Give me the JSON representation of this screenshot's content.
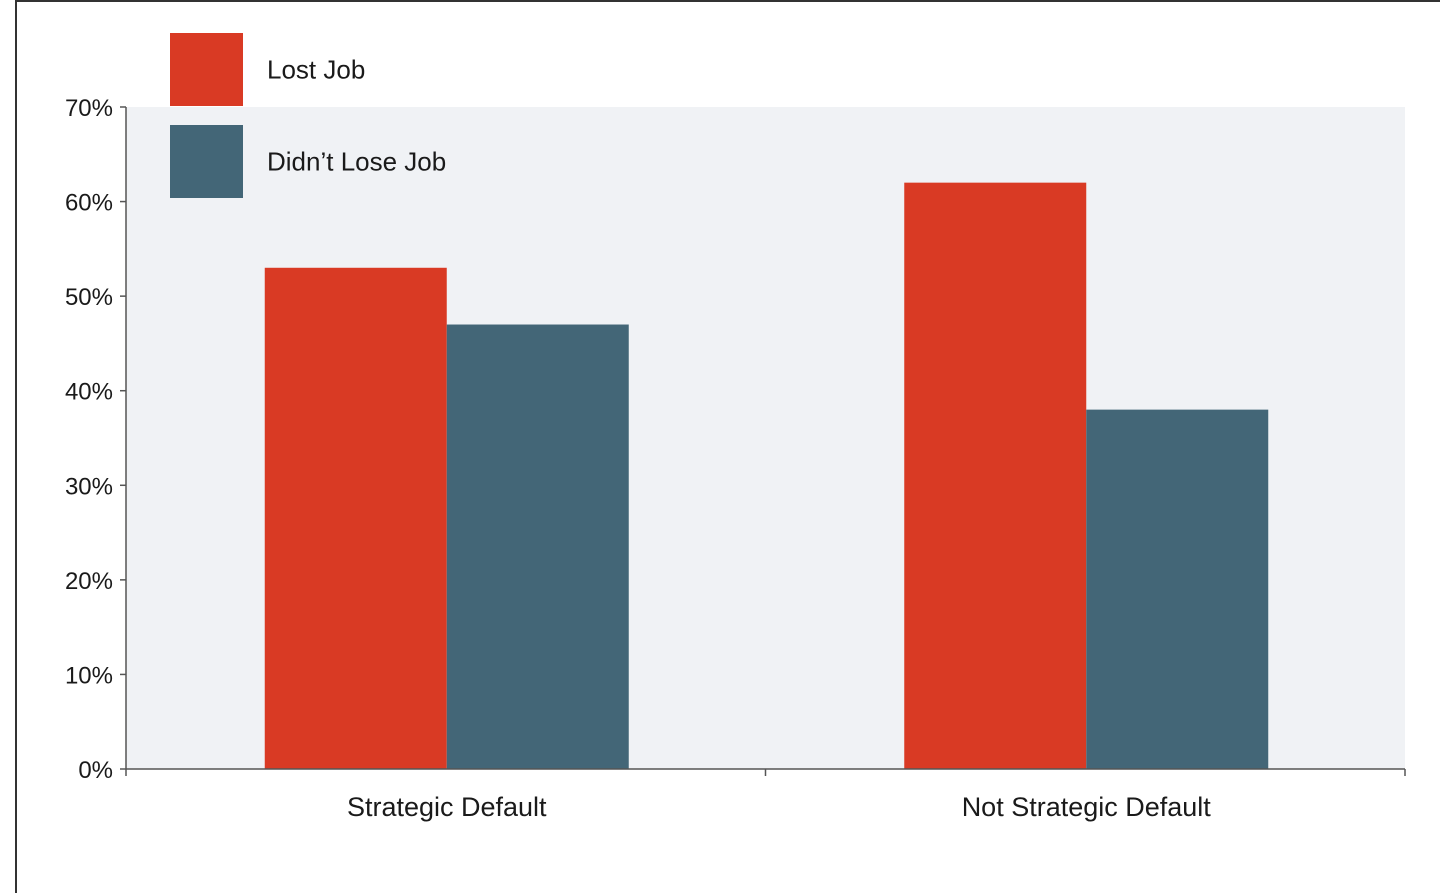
{
  "chart_data": {
    "type": "bar",
    "title": "",
    "xlabel": "",
    "ylabel": "",
    "categories": [
      "Strategic Default",
      "Not Strategic Default"
    ],
    "series": [
      {
        "name": "Lost Job",
        "values": [
          53,
          62
        ],
        "color": "#d93a24"
      },
      {
        "name": "Didn’t Lose Job",
        "values": [
          47,
          38
        ],
        "color": "#436677"
      }
    ],
    "ylim": [
      0,
      70
    ],
    "yticks": [
      0,
      10,
      20,
      30,
      40,
      50,
      60,
      70
    ],
    "ytick_labels": [
      "0%",
      "10%",
      "20%",
      "30%",
      "40%",
      "50%",
      "60%",
      "70%"
    ],
    "value_unit": "%",
    "grid": false,
    "legend_position": "top-left",
    "plot_background": "#f0f2f5"
  }
}
